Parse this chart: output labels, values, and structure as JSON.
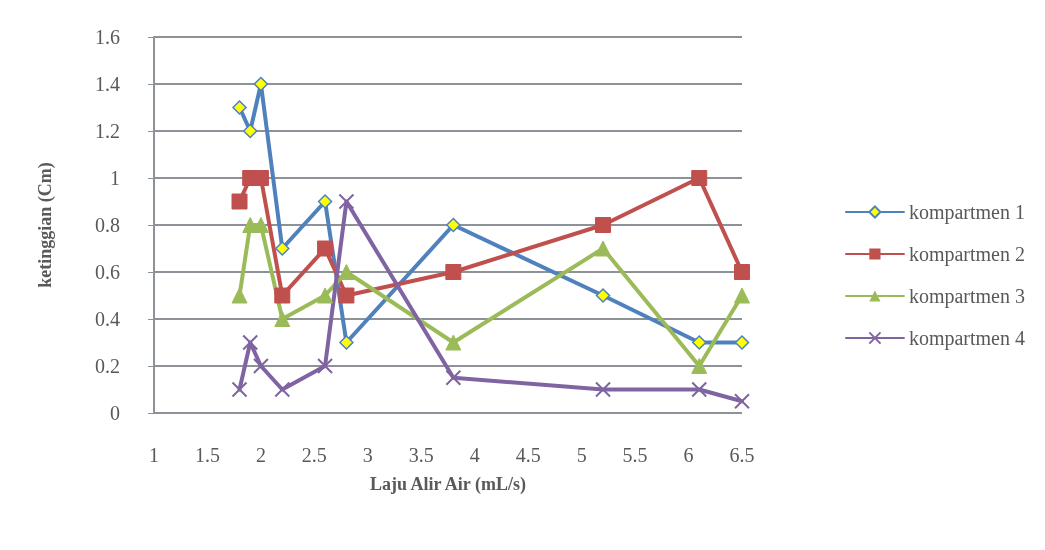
{
  "chart_data": {
    "type": "line",
    "xlabel": "Laju Alir Air (mL/s)",
    "ylabel": "ketinggian (Cm)",
    "x": [
      1.8,
      1.9,
      2.0,
      2.2,
      2.6,
      2.8,
      3.8,
      5.2,
      6.1,
      6.5
    ],
    "series": [
      {
        "name": "kompartmen 1",
        "color": "#4f81bd",
        "marker": "diamond",
        "values": [
          1.3,
          1.2,
          1.4,
          0.7,
          0.9,
          0.3,
          0.8,
          0.5,
          0.3,
          0.3
        ]
      },
      {
        "name": "kompartmen 2",
        "color": "#c0504d",
        "marker": "square",
        "values": [
          0.9,
          1.0,
          1.0,
          0.5,
          0.7,
          0.5,
          0.6,
          0.8,
          1.0,
          0.6
        ]
      },
      {
        "name": "kompartmen 3",
        "color": "#9bbb59",
        "marker": "triangle",
        "values": [
          0.5,
          0.8,
          0.8,
          0.4,
          0.5,
          0.6,
          0.3,
          0.7,
          0.2,
          0.5
        ]
      },
      {
        "name": "kompartmen 4",
        "color": "#8064a2",
        "marker": "cross",
        "values": [
          0.1,
          0.3,
          0.2,
          0.1,
          0.2,
          0.9,
          0.15,
          0.1,
          0.1,
          0.05
        ]
      }
    ],
    "xlim": [
      1,
      6.5
    ],
    "xticks": [
      1,
      1.5,
      2,
      2.5,
      3,
      3.5,
      4,
      4.5,
      5,
      5.5,
      6,
      6.5
    ],
    "ylim": [
      0,
      1.6
    ],
    "yticks": [
      0,
      0.2,
      0.4,
      0.6,
      0.8,
      1,
      1.2,
      1.4,
      1.6
    ],
    "grid": "y",
    "legend": "right",
    "line_style": "solid"
  }
}
